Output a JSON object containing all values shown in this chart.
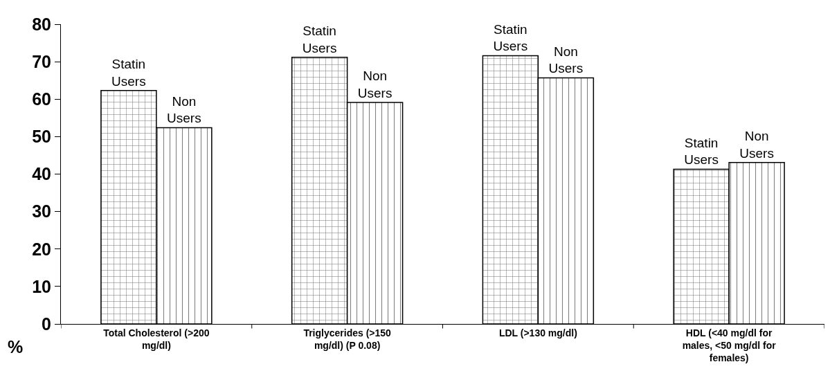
{
  "chart_data": {
    "type": "bar",
    "categories": [
      "Total Cholesterol (>200 mg/dl)",
      "Triglycerides (>150 mg/dl) (P 0.08)",
      "LDL (>130 mg/dl)",
      "HDL (<40 mg/dl for males, <50 mg/dl for females)"
    ],
    "series": [
      {
        "name": "Statin Users",
        "color": "#000000",
        "values": [
          62.3,
          71.2,
          71.6,
          41.3
        ]
      },
      {
        "name": "Non Users",
        "color": "#000000",
        "values": [
          52.4,
          59.1,
          65.7,
          43.1
        ]
      }
    ],
    "ylabel": "%",
    "ylim": [
      0,
      80
    ],
    "yticks": [
      0,
      10,
      20,
      30,
      40,
      50,
      60,
      70,
      80
    ],
    "legend": false
  }
}
